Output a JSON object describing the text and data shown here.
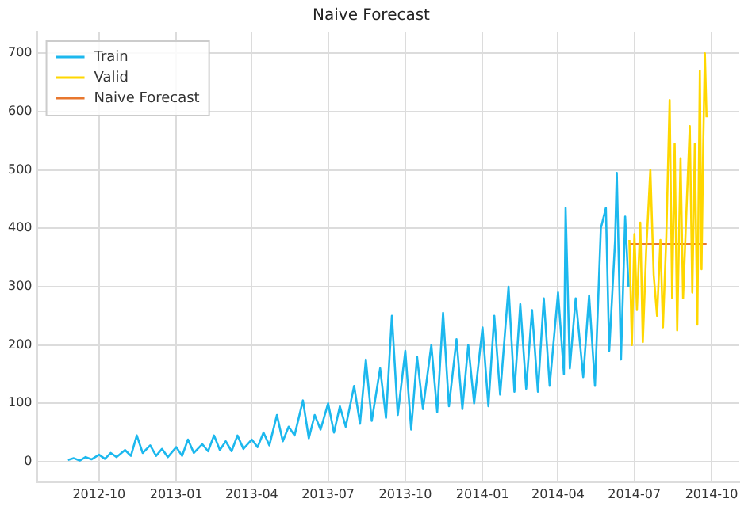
{
  "chart_data": {
    "type": "line",
    "title": "Naive Forecast",
    "xlim": [
      "2012-07-19",
      "2014-11-03"
    ],
    "xticks": [
      "2012-10",
      "2013-01",
      "2013-04",
      "2013-07",
      "2013-10",
      "2014-01",
      "2014-04",
      "2014-07",
      "2014-10"
    ],
    "ylim": [
      -35,
      737
    ],
    "yticks": [
      0,
      100,
      200,
      300,
      400,
      500,
      600,
      700
    ],
    "grid": true,
    "legend": "top left",
    "marker": "none",
    "line_style": "solid",
    "series": [
      {
        "name": "Train",
        "color": "#1cb8ee",
        "x": [
          "2012-08-25",
          "2012-09-01",
          "2012-09-08",
          "2012-09-15",
          "2012-09-22",
          "2012-10-01",
          "2012-10-08",
          "2012-10-15",
          "2012-10-22",
          "2012-11-01",
          "2012-11-08",
          "2012-11-15",
          "2012-11-22",
          "2012-12-01",
          "2012-12-08",
          "2012-12-15",
          "2012-12-22",
          "2013-01-01",
          "2013-01-08",
          "2013-01-15",
          "2013-01-22",
          "2013-02-01",
          "2013-02-08",
          "2013-02-15",
          "2013-02-22",
          "2013-03-01",
          "2013-03-08",
          "2013-03-15",
          "2013-03-22",
          "2013-04-01",
          "2013-04-08",
          "2013-04-15",
          "2013-04-22",
          "2013-05-01",
          "2013-05-08",
          "2013-05-15",
          "2013-05-22",
          "2013-06-01",
          "2013-06-08",
          "2013-06-15",
          "2013-06-22",
          "2013-07-01",
          "2013-07-08",
          "2013-07-15",
          "2013-07-22",
          "2013-08-01",
          "2013-08-08",
          "2013-08-15",
          "2013-08-22",
          "2013-09-01",
          "2013-09-08",
          "2013-09-15",
          "2013-09-22",
          "2013-10-01",
          "2013-10-08",
          "2013-10-15",
          "2013-10-22",
          "2013-11-01",
          "2013-11-08",
          "2013-11-15",
          "2013-11-22",
          "2013-12-01",
          "2013-12-08",
          "2013-12-15",
          "2013-12-22",
          "2014-01-01",
          "2014-01-08",
          "2014-01-15",
          "2014-01-22",
          "2014-02-01",
          "2014-02-08",
          "2014-02-15",
          "2014-02-22",
          "2014-03-01",
          "2014-03-08",
          "2014-03-15",
          "2014-03-22",
          "2014-04-01",
          "2014-04-08",
          "2014-04-10",
          "2014-04-15",
          "2014-04-22",
          "2014-05-01",
          "2014-05-08",
          "2014-05-15",
          "2014-05-22",
          "2014-05-28",
          "2014-06-01",
          "2014-06-08",
          "2014-06-10",
          "2014-06-15",
          "2014-06-20",
          "2014-06-24"
        ],
        "values": [
          3,
          6,
          2,
          8,
          4,
          12,
          5,
          15,
          8,
          20,
          10,
          45,
          15,
          28,
          10,
          22,
          8,
          25,
          10,
          38,
          15,
          30,
          18,
          45,
          20,
          35,
          18,
          45,
          22,
          38,
          25,
          50,
          28,
          80,
          35,
          60,
          45,
          105,
          40,
          80,
          55,
          100,
          50,
          95,
          60,
          130,
          65,
          175,
          70,
          160,
          75,
          250,
          80,
          190,
          55,
          180,
          90,
          200,
          85,
          255,
          95,
          210,
          90,
          200,
          100,
          230,
          95,
          250,
          115,
          300,
          120,
          270,
          125,
          260,
          120,
          280,
          130,
          290,
          150,
          435,
          160,
          280,
          145,
          285,
          130,
          400,
          435,
          190,
          380,
          495,
          175,
          420,
          300
        ]
      },
      {
        "name": "Valid",
        "color": "#ffd700",
        "x": [
          "2014-06-25",
          "2014-06-28",
          "2014-07-01",
          "2014-07-04",
          "2014-07-08",
          "2014-07-11",
          "2014-07-15",
          "2014-07-20",
          "2014-07-24",
          "2014-07-28",
          "2014-08-01",
          "2014-08-04",
          "2014-08-08",
          "2014-08-12",
          "2014-08-15",
          "2014-08-18",
          "2014-08-21",
          "2014-08-25",
          "2014-08-28",
          "2014-09-01",
          "2014-09-05",
          "2014-09-08",
          "2014-09-11",
          "2014-09-14",
          "2014-09-17",
          "2014-09-19",
          "2014-09-21",
          "2014-09-23",
          "2014-09-25"
        ],
        "values": [
          380,
          200,
          390,
          260,
          410,
          205,
          360,
          500,
          320,
          250,
          380,
          230,
          385,
          620,
          280,
          545,
          225,
          520,
          280,
          430,
          575,
          290,
          545,
          235,
          670,
          330,
          540,
          700,
          590
        ]
      },
      {
        "name": "Naive Forecast",
        "color": "#e8772e",
        "x": [
          "2014-06-25",
          "2014-09-25"
        ],
        "values": [
          373,
          373
        ]
      }
    ]
  }
}
